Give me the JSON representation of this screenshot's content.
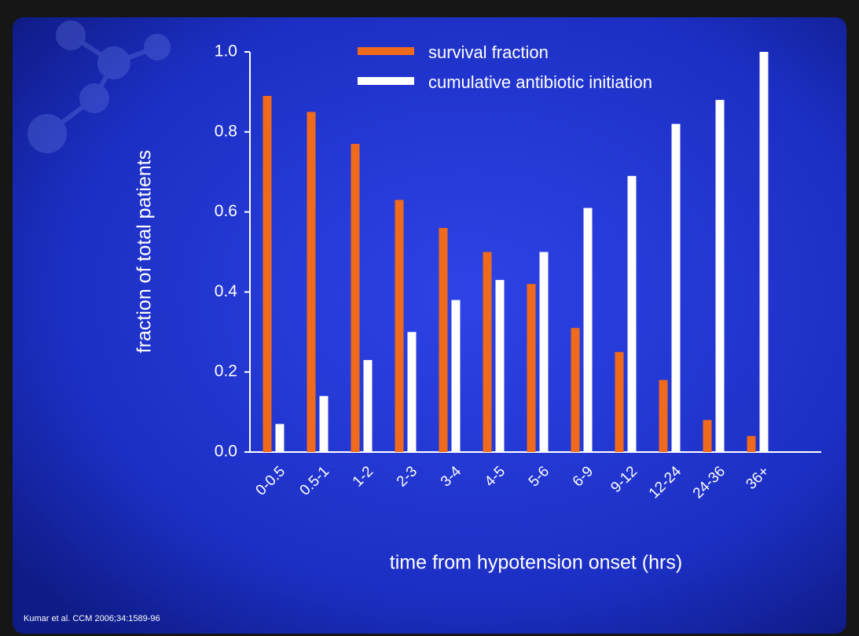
{
  "chart_data": {
    "type": "bar",
    "categories": [
      "0-0.5",
      "0.5-1",
      "1-2",
      "2-3",
      "3-4",
      "4-5",
      "5-6",
      "6-9",
      "9-12",
      "12-24",
      "24-36",
      "36+"
    ],
    "series": [
      {
        "name": "survival fraction",
        "color": "#f06a1c",
        "values": [
          0.89,
          0.85,
          0.77,
          0.63,
          0.56,
          0.5,
          0.42,
          0.31,
          0.25,
          0.18,
          0.08,
          0.04
        ]
      },
      {
        "name": "cumulative antibiotic initiation",
        "color": "#ffffff",
        "values": [
          0.07,
          0.14,
          0.23,
          0.3,
          0.38,
          0.43,
          0.5,
          0.61,
          0.69,
          0.82,
          0.88,
          1.0
        ]
      }
    ],
    "ylim": [
      0,
      1
    ],
    "yticks": [
      {
        "value": 0,
        "label": "0.0"
      },
      0.2,
      0.4,
      0.6,
      0.8,
      {
        "value": 1,
        "label": "1.0"
      }
    ],
    "ylabel": "fraction of total patients",
    "xlabel": "time from hypotension onset (hrs)",
    "source": "Kumar et al. CCM 2006;34:1589-96",
    "legend": "top"
  }
}
